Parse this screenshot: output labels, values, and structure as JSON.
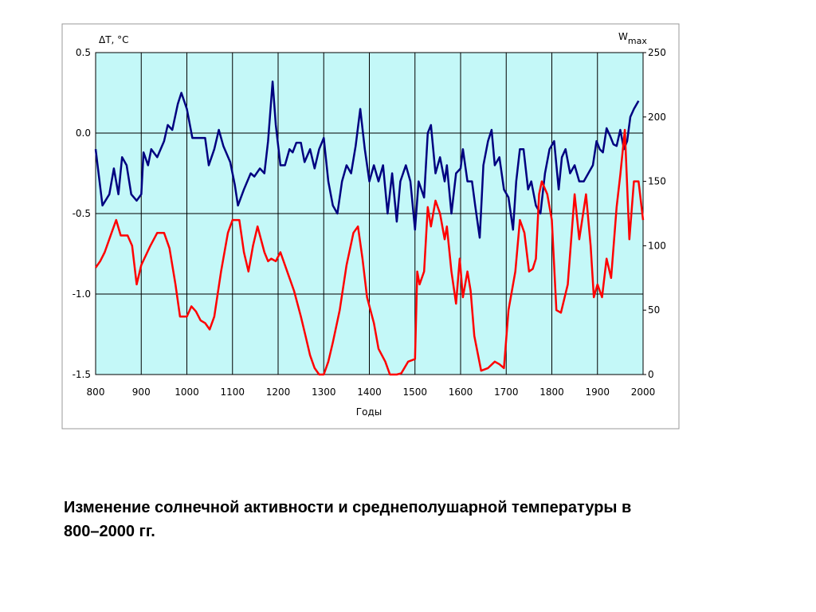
{
  "chart_data": {
    "type": "line",
    "y_label": "ΔT, °C",
    "y2_label": "W",
    "y2_label_sub": "max",
    "x_label": "Годы",
    "caption": "Изменение солнечной активности и среднеполушарной температуры в 800–2000 гг.",
    "xlim": [
      800,
      2000
    ],
    "xticks": [
      800,
      900,
      1000,
      1100,
      1200,
      1300,
      1400,
      1500,
      1600,
      1700,
      1800,
      1900,
      2000
    ],
    "ylim": [
      -1.5,
      0.5
    ],
    "yticks": [
      -1.5,
      {
        "value": -1,
        "label": "-1.0"
      },
      -0.5,
      {
        "value": 0,
        "label": "0.0"
      },
      0.5
    ],
    "y2lim": [
      0,
      250
    ],
    "y2ticks": [
      0,
      50,
      100,
      150,
      200,
      250
    ],
    "grid": true,
    "background": "#c4f8f8",
    "series": [
      {
        "color": "#000080",
        "x": [
          800,
          815,
          830,
          840,
          850,
          858,
          868,
          878,
          890,
          900,
          905,
          915,
          922,
          935,
          950,
          958,
          968,
          980,
          988,
          1000,
          1012,
          1025,
          1040,
          1048,
          1060,
          1070,
          1080,
          1095,
          1105,
          1112,
          1125,
          1140,
          1148,
          1160,
          1170,
          1178,
          1188,
          1195,
          1205,
          1215,
          1225,
          1232,
          1240,
          1250,
          1258,
          1270,
          1280,
          1290,
          1300,
          1310,
          1320,
          1330,
          1340,
          1350,
          1360,
          1370,
          1380,
          1390,
          1400,
          1410,
          1420,
          1430,
          1440,
          1450,
          1460,
          1468,
          1480,
          1490,
          1500,
          1508,
          1520,
          1528,
          1535,
          1545,
          1555,
          1565,
          1570,
          1580,
          1590,
          1600,
          1605,
          1615,
          1625,
          1632,
          1642,
          1650,
          1660,
          1668,
          1675,
          1685,
          1695,
          1705,
          1715,
          1722,
          1730,
          1738,
          1748,
          1755,
          1765,
          1775,
          1785,
          1795,
          1805,
          1815,
          1822,
          1830,
          1840,
          1850,
          1860,
          1870,
          1880,
          1890,
          1898,
          1905,
          1912,
          1920,
          1928,
          1935,
          1942,
          1950,
          1958,
          1965,
          1972,
          1980,
          1990
        ],
        "values": [
          -0.1,
          -0.45,
          -0.38,
          -0.22,
          -0.38,
          -0.15,
          -0.2,
          -0.38,
          -0.42,
          -0.38,
          -0.12,
          -0.2,
          -0.1,
          -0.15,
          -0.05,
          0.05,
          0.02,
          0.18,
          0.25,
          0.15,
          -0.03,
          -0.03,
          -0.03,
          -0.2,
          -0.1,
          0.02,
          -0.08,
          -0.18,
          -0.32,
          -0.45,
          -0.35,
          -0.25,
          -0.27,
          -0.22,
          -0.25,
          -0.05,
          0.32,
          0.05,
          -0.2,
          -0.2,
          -0.1,
          -0.12,
          -0.06,
          -0.06,
          -0.18,
          -0.1,
          -0.22,
          -0.1,
          -0.03,
          -0.3,
          -0.45,
          -0.5,
          -0.3,
          -0.2,
          -0.25,
          -0.08,
          0.15,
          -0.1,
          -0.3,
          -0.2,
          -0.3,
          -0.2,
          -0.5,
          -0.25,
          -0.55,
          -0.3,
          -0.2,
          -0.3,
          -0.6,
          -0.3,
          -0.4,
          0,
          0.05,
          -0.25,
          -0.15,
          -0.3,
          -0.2,
          -0.5,
          -0.25,
          -0.22,
          -0.1,
          -0.3,
          -0.3,
          -0.45,
          -0.65,
          -0.2,
          -0.05,
          0.02,
          -0.2,
          -0.15,
          -0.35,
          -0.4,
          -0.6,
          -0.3,
          -0.1,
          -0.1,
          -0.35,
          -0.3,
          -0.45,
          -0.5,
          -0.25,
          -0.1,
          -0.05,
          -0.35,
          -0.15,
          -0.1,
          -0.25,
          -0.2,
          -0.3,
          -0.3,
          -0.25,
          -0.2,
          -0.05,
          -0.1,
          -0.12,
          0.03,
          -0.02,
          -0.07,
          -0.08,
          0.02,
          -0.1,
          -0.05,
          0.1,
          0.15,
          0.2
        ]
      },
      {
        "color": "#ff0000",
        "axis": "y2",
        "x": [
          800,
          810,
          820,
          835,
          845,
          855,
          870,
          880,
          890,
          900,
          920,
          935,
          950,
          962,
          975,
          985,
          1000,
          1010,
          1020,
          1030,
          1040,
          1050,
          1060,
          1075,
          1090,
          1100,
          1115,
          1125,
          1135,
          1145,
          1155,
          1170,
          1178,
          1185,
          1195,
          1205,
          1220,
          1235,
          1250,
          1260,
          1270,
          1280,
          1290,
          1300,
          1310,
          1320,
          1335,
          1350,
          1365,
          1375,
          1385,
          1395,
          1410,
          1420,
          1435,
          1445,
          1460,
          1470,
          1485,
          1500,
          1505,
          1510,
          1520,
          1528,
          1535,
          1545,
          1555,
          1565,
          1570,
          1580,
          1590,
          1598,
          1605,
          1615,
          1622,
          1630,
          1645,
          1660,
          1675,
          1685,
          1695,
          1705,
          1720,
          1730,
          1740,
          1750,
          1758,
          1765,
          1772,
          1778,
          1790,
          1800,
          1810,
          1820,
          1835,
          1850,
          1860,
          1875,
          1885,
          1892,
          1900,
          1910,
          1920,
          1930,
          1942,
          1950,
          1960,
          1970,
          1980,
          1990,
          2000
        ],
        "values": [
          83,
          88,
          95,
          110,
          120,
          108,
          108,
          100,
          70,
          85,
          100,
          110,
          110,
          98,
          70,
          45,
          45,
          53,
          49,
          42,
          40,
          35,
          45,
          80,
          110,
          120,
          120,
          95,
          80,
          100,
          115,
          95,
          88,
          90,
          88,
          95,
          80,
          65,
          45,
          30,
          15,
          5,
          0,
          0,
          10,
          25,
          50,
          85,
          110,
          115,
          90,
          60,
          40,
          20,
          10,
          0,
          0,
          1,
          10,
          12,
          80,
          70,
          80,
          130,
          115,
          135,
          125,
          105,
          115,
          80,
          55,
          90,
          60,
          80,
          65,
          30,
          3,
          5,
          10,
          8,
          5,
          50,
          80,
          120,
          110,
          80,
          82,
          90,
          140,
          150,
          140,
          120,
          50,
          48,
          70,
          140,
          105,
          140,
          100,
          60,
          70,
          60,
          90,
          75,
          130,
          155,
          190,
          105,
          150,
          150,
          120
        ]
      }
    ]
  }
}
